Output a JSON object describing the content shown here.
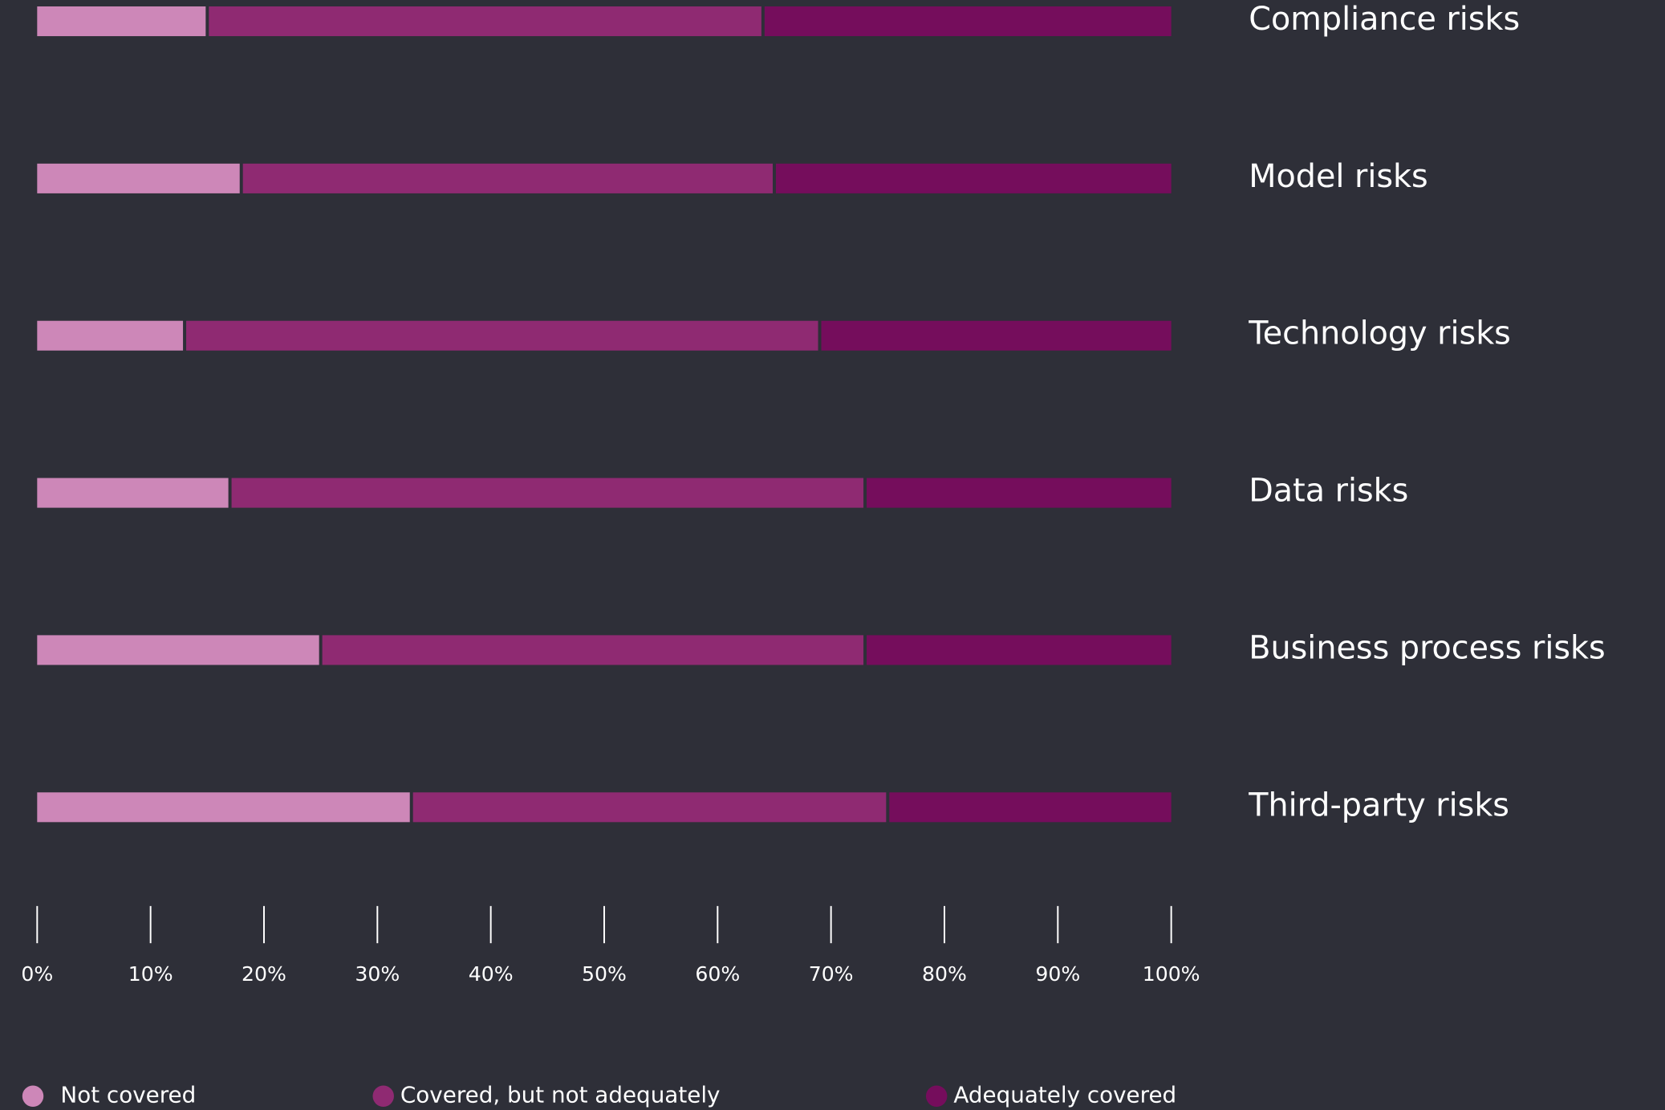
{
  "chart_data": {
    "type": "stacked-bar-horizontal",
    "categories": [
      "Compliance risks",
      "Model risks",
      "Technology risks",
      "Data risks",
      "Business process risks",
      "Third-party risks"
    ],
    "series": [
      {
        "name": "Not covered",
        "color": "#cd87b8",
        "values": [
          15,
          18,
          13,
          17,
          25,
          33
        ]
      },
      {
        "name": "Covered, but not adequately",
        "color": "#8f2a72",
        "values": [
          49,
          47,
          56,
          56,
          48,
          42
        ]
      },
      {
        "name": "Adequately covered",
        "color": "#750d5c",
        "values": [
          36,
          35,
          31,
          27,
          27,
          25
        ]
      }
    ],
    "xlim": [
      0,
      100
    ],
    "xticks": [
      {
        "value": 0,
        "label": "0%"
      },
      {
        "value": 10,
        "label": "10%"
      },
      {
        "value": 20,
        "label": "20%"
      },
      {
        "value": 30,
        "label": "30%"
      },
      {
        "value": 40,
        "label": "40%"
      },
      {
        "value": 50,
        "label": "50%"
      },
      {
        "value": 60,
        "label": "60%"
      },
      {
        "value": 70,
        "label": "70%"
      },
      {
        "value": 80,
        "label": "80%"
      },
      {
        "value": 90,
        "label": "90%"
      },
      {
        "value": 100,
        "label": "100%"
      }
    ]
  }
}
